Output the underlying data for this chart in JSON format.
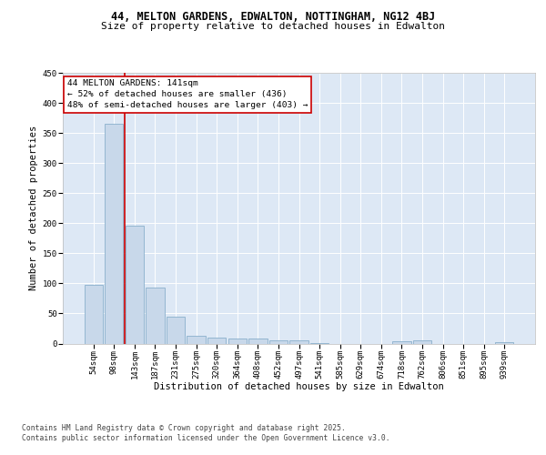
{
  "title": "44, MELTON GARDENS, EDWALTON, NOTTINGHAM, NG12 4BJ",
  "subtitle": "Size of property relative to detached houses in Edwalton",
  "xlabel": "Distribution of detached houses by size in Edwalton",
  "ylabel": "Number of detached properties",
  "bar_color": "#c8d8ea",
  "bar_edge_color": "#8ab0cc",
  "background_color": "#ffffff",
  "plot_bg_color": "#dde8f5",
  "grid_color": "#ffffff",
  "categories": [
    "54sqm",
    "98sqm",
    "143sqm",
    "187sqm",
    "231sqm",
    "275sqm",
    "320sqm",
    "364sqm",
    "408sqm",
    "452sqm",
    "497sqm",
    "541sqm",
    "585sqm",
    "629sqm",
    "674sqm",
    "718sqm",
    "762sqm",
    "806sqm",
    "851sqm",
    "895sqm",
    "939sqm"
  ],
  "values": [
    97,
    365,
    196,
    93,
    45,
    13,
    10,
    8,
    8,
    6,
    5,
    1,
    0,
    0,
    0,
    4,
    5,
    0,
    0,
    0,
    2
  ],
  "ylim": [
    0,
    450
  ],
  "yticks": [
    0,
    50,
    100,
    150,
    200,
    250,
    300,
    350,
    400,
    450
  ],
  "vline_x": 1.5,
  "vline_color": "#cc0000",
  "ann_title": "44 MELTON GARDENS: 141sqm",
  "ann_line1": "← 52% of detached houses are smaller (436)",
  "ann_line2": "48% of semi-detached houses are larger (403) →",
  "ann_box_edgecolor": "#cc0000",
  "footer_line1": "Contains HM Land Registry data © Crown copyright and database right 2025.",
  "footer_line2": "Contains public sector information licensed under the Open Government Licence v3.0.",
  "title_fontsize": 8.5,
  "subtitle_fontsize": 8.0,
  "axis_label_fontsize": 7.5,
  "tick_fontsize": 6.5,
  "annotation_fontsize": 6.8,
  "footer_fontsize": 5.8
}
